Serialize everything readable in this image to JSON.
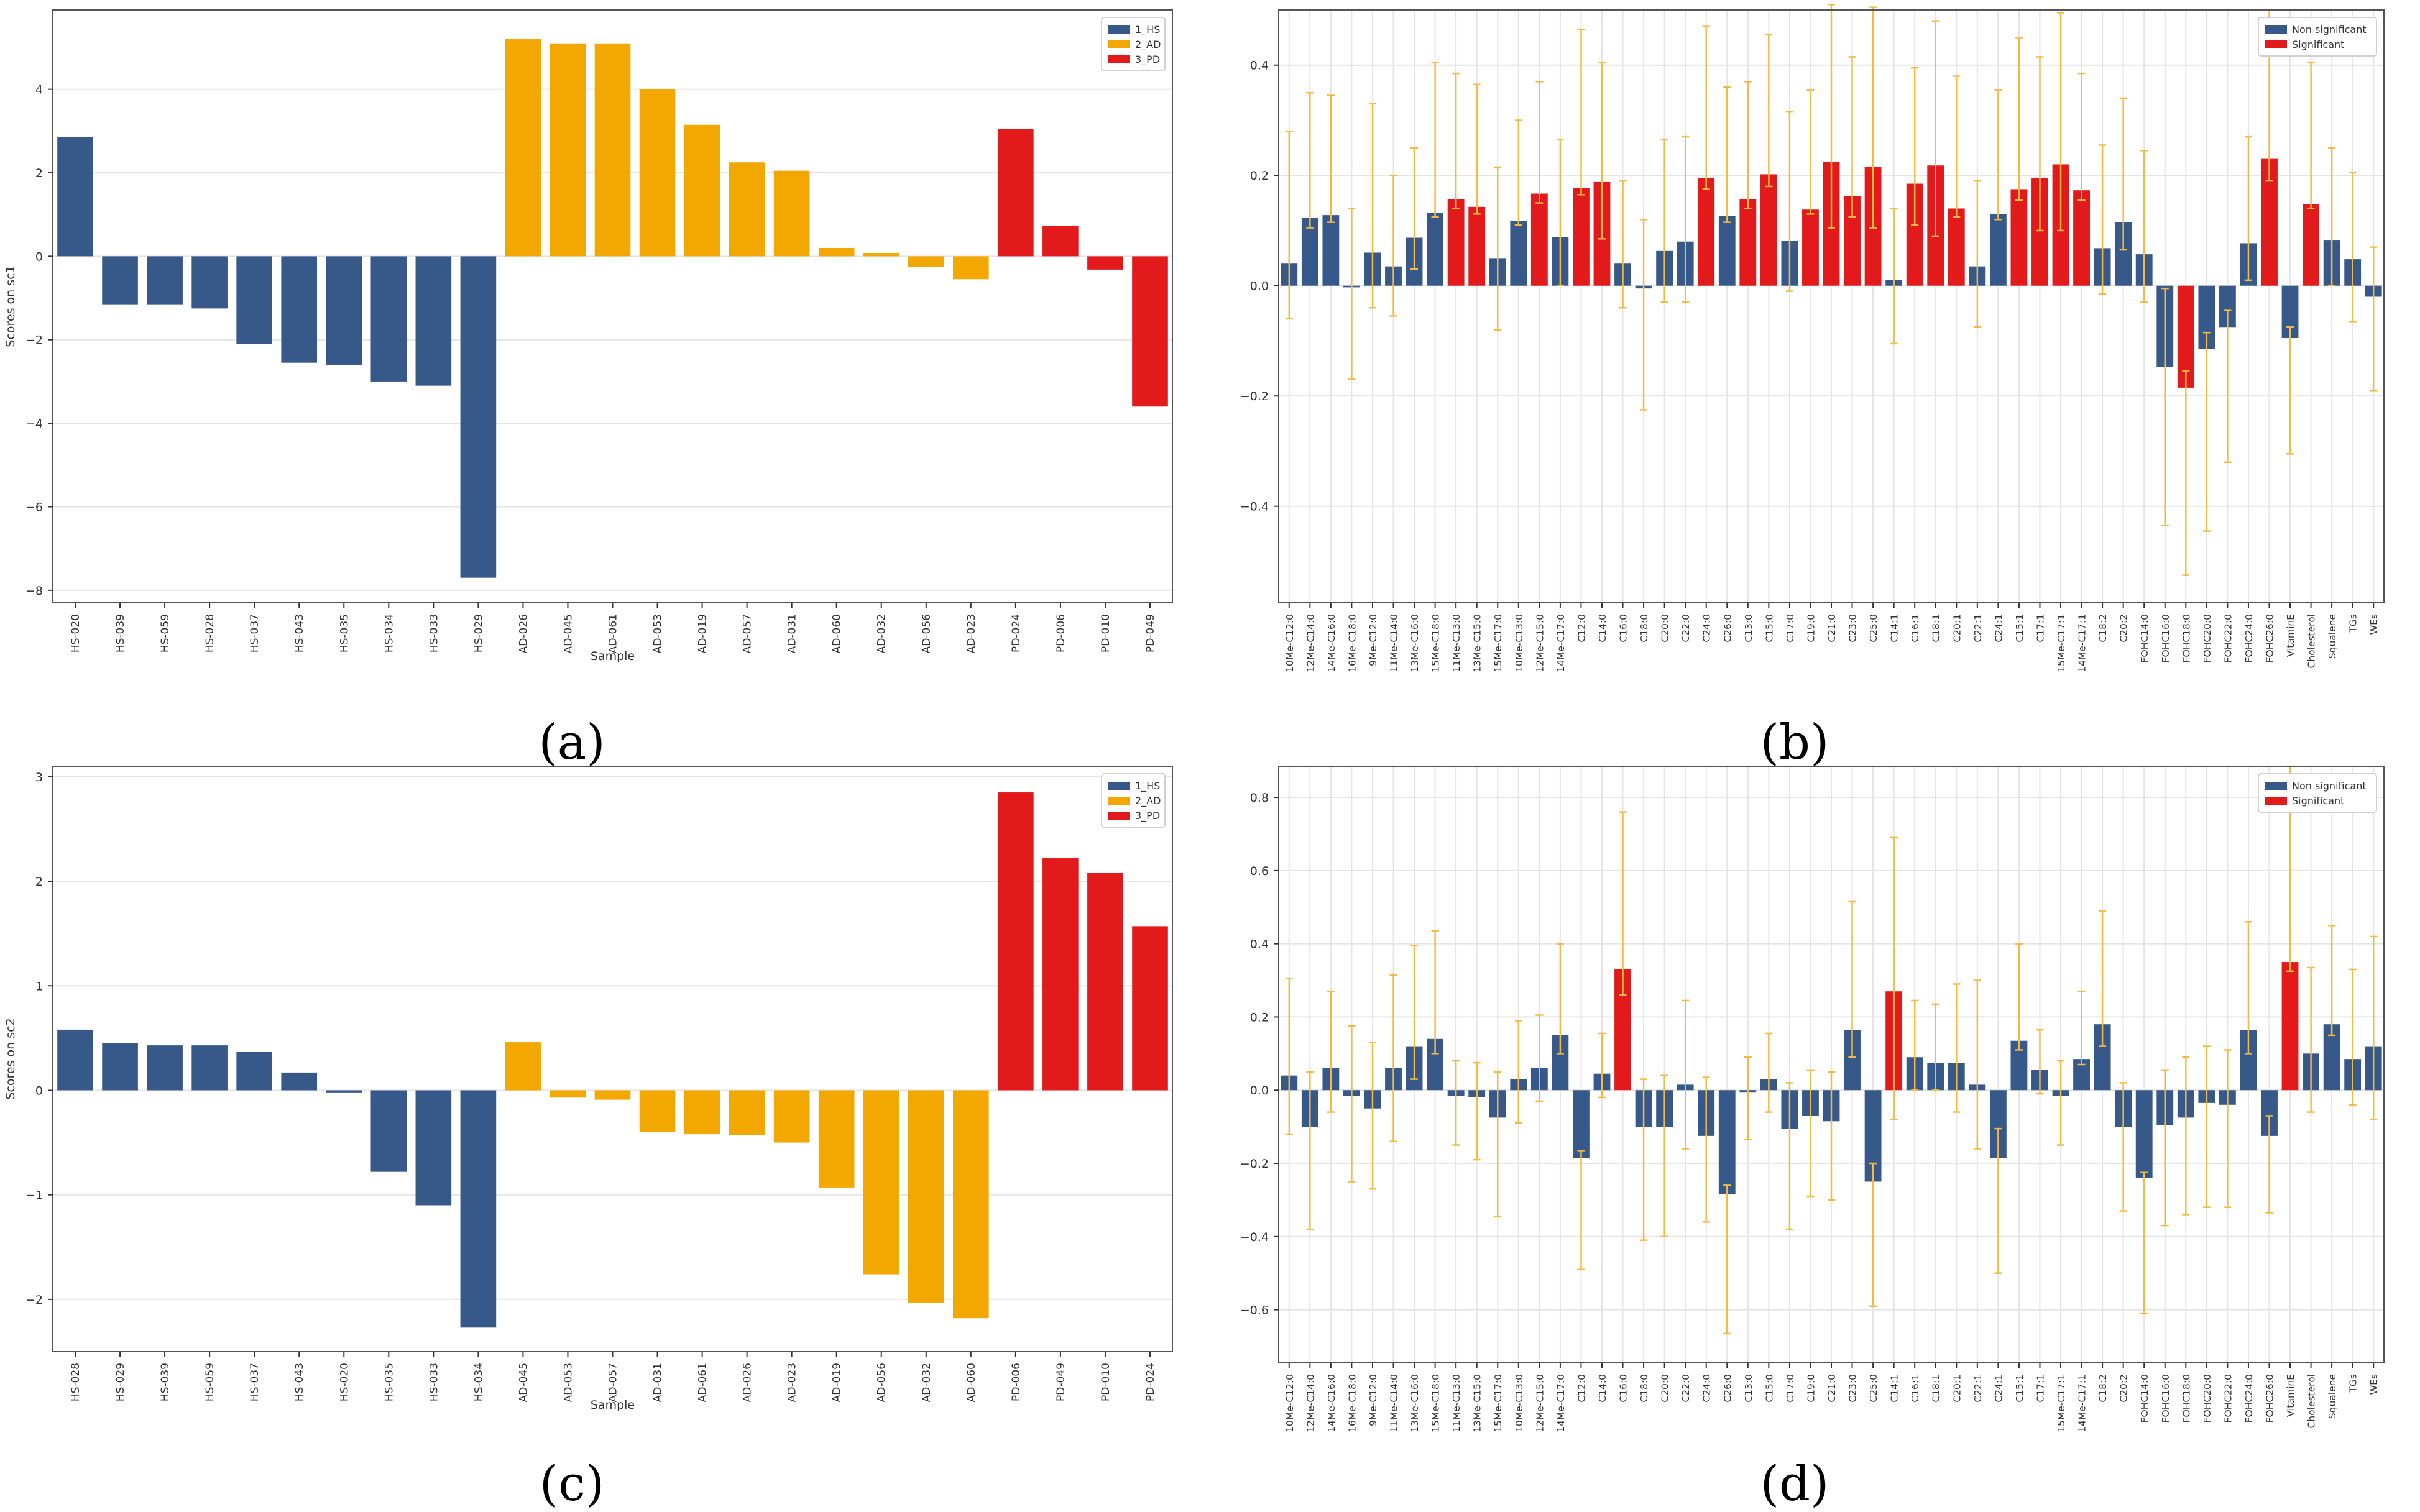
{
  "panels": [
    {
      "letter": "(a)",
      "chart_data": {
        "type": "bar",
        "xlabel": "Sample",
        "ylabel": "Scores on sc1",
        "ylim": [
          -8.3,
          5.9
        ],
        "yticks": [
          -8,
          -6,
          -4,
          -2,
          0,
          2,
          4
        ],
        "grid": true,
        "legend_position": "top-right",
        "legend": [
          "1_HS",
          "2_AD",
          "3_PD"
        ],
        "colors": {
          "1_HS": "#37598a",
          "2_AD": "#f2a800",
          "3_PD": "#e31a1c"
        },
        "categories": [
          "HS-020",
          "HS-039",
          "HS-059",
          "HS-028",
          "HS-037",
          "HS-043",
          "HS-035",
          "HS-034",
          "HS-033",
          "HS-029",
          "AD-026",
          "AD-045",
          "AD-061",
          "AD-053",
          "AD-019",
          "AD-057",
          "AD-031",
          "AD-060",
          "AD-032",
          "AD-056",
          "AD-023",
          "PD-024",
          "PD-006",
          "PD-010",
          "PD-049"
        ],
        "groups": [
          "1_HS",
          "1_HS",
          "1_HS",
          "1_HS",
          "1_HS",
          "1_HS",
          "1_HS",
          "1_HS",
          "1_HS",
          "1_HS",
          "2_AD",
          "2_AD",
          "2_AD",
          "2_AD",
          "2_AD",
          "2_AD",
          "2_AD",
          "2_AD",
          "2_AD",
          "2_AD",
          "2_AD",
          "3_PD",
          "3_PD",
          "3_PD",
          "3_PD"
        ],
        "values": [
          2.85,
          -1.15,
          -1.15,
          -1.25,
          -2.1,
          -2.55,
          -2.6,
          -3.0,
          -3.1,
          -7.7,
          5.2,
          5.1,
          5.1,
          4.0,
          3.15,
          2.25,
          2.05,
          0.2,
          0.08,
          -0.25,
          -0.55,
          3.05,
          0.72,
          -0.32,
          -3.6
        ]
      }
    },
    {
      "letter": "(b)",
      "chart_data": {
        "type": "bar",
        "xlabel": "",
        "ylabel": "",
        "ylim": [
          -0.575,
          0.5
        ],
        "yticks": [
          -0.4,
          -0.2,
          0.0,
          0.2,
          0.4
        ],
        "grid": true,
        "legend_position": "top-right",
        "legend": [
          "Non significant",
          "Significant"
        ],
        "colors": {
          "Non significant": "#37598a",
          "Significant": "#e31a1c",
          "errorbar": "#f5b942"
        },
        "categories": [
          "10Me-C12:0",
          "12Me-C14:0",
          "14Me-C16:0",
          "16Me-C18:0",
          "9Me-C12:0",
          "11Me-C14:0",
          "13Me-C16:0",
          "15Me-C18:0",
          "11Me-C13:0",
          "13Me-C15:0",
          "15Me-C17:0",
          "10Me-C13:0",
          "12Me-C15:0",
          "14Me-C17:0",
          "C12:0",
          "C14:0",
          "C16:0",
          "C18:0",
          "C20:0",
          "C22:0",
          "C24:0",
          "C26:0",
          "C13:0",
          "C15:0",
          "C17:0",
          "C19:0",
          "C21:0",
          "C23:0",
          "C25:0",
          "C14:1",
          "C16:1",
          "C18:1",
          "C20:1",
          "C22:1",
          "C24:1",
          "C15:1",
          "C17:1",
          "15Me-C17:1",
          "14Me-C17:1",
          "C18:2",
          "C20:2",
          "FOHC14:0",
          "FOHC16:0",
          "FOHC18:0",
          "FOHC20:0",
          "FOHC22:0",
          "FOHC24:0",
          "FOHC26:0",
          "VitaminE",
          "Cholesterol",
          "Squalene",
          "TGs",
          "WEs"
        ],
        "values": [
          0.04,
          0.123,
          0.128,
          -0.003,
          0.06,
          0.035,
          0.087,
          0.132,
          0.157,
          0.143,
          0.05,
          0.117,
          0.167,
          0.088,
          0.177,
          0.188,
          0.04,
          -0.005,
          0.063,
          0.08,
          0.195,
          0.127,
          0.157,
          0.202,
          0.082,
          0.138,
          0.225,
          0.163,
          0.215,
          0.01,
          0.185,
          0.218,
          0.14,
          0.035,
          0.13,
          0.175,
          0.195,
          0.22,
          0.173,
          0.068,
          0.115,
          0.057,
          -0.147,
          -0.185,
          -0.115,
          -0.075,
          0.077,
          0.23,
          -0.095,
          0.148,
          0.083,
          0.048,
          -0.02
        ],
        "error_low": [
          -0.06,
          0.105,
          0.115,
          -0.17,
          -0.04,
          -0.055,
          0.03,
          0.125,
          0.14,
          0.13,
          -0.08,
          0.11,
          0.15,
          0.0,
          0.165,
          0.085,
          -0.04,
          -0.225,
          -0.03,
          -0.03,
          0.175,
          0.115,
          0.14,
          0.18,
          -0.01,
          0.13,
          0.105,
          0.125,
          0.105,
          -0.105,
          0.11,
          0.09,
          0.125,
          -0.075,
          0.12,
          0.155,
          0.1,
          0.1,
          0.155,
          -0.015,
          0.065,
          -0.03,
          -0.435,
          -0.525,
          -0.445,
          -0.32,
          0.01,
          0.19,
          -0.305,
          0.14,
          0.0,
          -0.065,
          -0.19
        ],
        "error_high": [
          0.28,
          0.35,
          0.345,
          0.14,
          0.33,
          0.2,
          0.25,
          0.405,
          0.385,
          0.365,
          0.215,
          0.3,
          0.37,
          0.265,
          0.465,
          0.405,
          0.19,
          0.12,
          0.265,
          0.27,
          0.47,
          0.36,
          0.37,
          0.455,
          0.315,
          0.355,
          0.51,
          0.415,
          0.505,
          0.14,
          0.395,
          0.48,
          0.38,
          0.19,
          0.355,
          0.45,
          0.415,
          0.495,
          0.385,
          0.255,
          0.34,
          0.245,
          -0.005,
          -0.155,
          -0.085,
          -0.045,
          0.27,
          0.5,
          -0.075,
          0.405,
          0.25,
          0.205,
          0.07
        ],
        "significant": [
          false,
          false,
          false,
          false,
          false,
          false,
          false,
          false,
          true,
          true,
          false,
          false,
          true,
          false,
          true,
          true,
          false,
          false,
          false,
          false,
          true,
          false,
          true,
          true,
          false,
          true,
          true,
          true,
          true,
          false,
          true,
          true,
          true,
          false,
          false,
          true,
          true,
          true,
          true,
          false,
          false,
          false,
          false,
          true,
          false,
          false,
          false,
          true,
          false,
          true,
          false,
          false,
          false
        ]
      }
    },
    {
      "letter": "(c)",
      "chart_data": {
        "type": "bar",
        "xlabel": "Sample",
        "ylabel": "Scores on sc2",
        "ylim": [
          -2.5,
          3.1
        ],
        "yticks": [
          -2,
          -1,
          0,
          1,
          2,
          3
        ],
        "grid": true,
        "legend_position": "top-right",
        "legend": [
          "1_HS",
          "2_AD",
          "3_PD"
        ],
        "colors": {
          "1_HS": "#37598a",
          "2_AD": "#f2a800",
          "3_PD": "#e31a1c"
        },
        "categories": [
          "HS-028",
          "HS-029",
          "HS-039",
          "HS-059",
          "HS-037",
          "HS-043",
          "HS-020",
          "HS-035",
          "HS-033",
          "HS-034",
          "AD-045",
          "AD-053",
          "AD-057",
          "AD-031",
          "AD-061",
          "AD-026",
          "AD-023",
          "AD-019",
          "AD-056",
          "AD-032",
          "AD-060",
          "PD-006",
          "PD-049",
          "PD-010",
          "PD-024"
        ],
        "groups": [
          "1_HS",
          "1_HS",
          "1_HS",
          "1_HS",
          "1_HS",
          "1_HS",
          "1_HS",
          "1_HS",
          "1_HS",
          "1_HS",
          "2_AD",
          "2_AD",
          "2_AD",
          "2_AD",
          "2_AD",
          "2_AD",
          "2_AD",
          "2_AD",
          "2_AD",
          "2_AD",
          "2_AD",
          "3_PD",
          "3_PD",
          "3_PD",
          "3_PD"
        ],
        "values": [
          0.58,
          0.45,
          0.43,
          0.43,
          0.37,
          0.17,
          -0.02,
          -0.78,
          -1.1,
          -2.27,
          0.46,
          -0.07,
          -0.09,
          -0.4,
          -0.42,
          -0.43,
          -0.5,
          -0.93,
          -1.76,
          -2.03,
          -2.18,
          2.85,
          2.22,
          2.08,
          1.57
        ]
      }
    },
    {
      "letter": "(d)",
      "chart_data": {
        "type": "bar",
        "xlabel": "",
        "ylabel": "",
        "ylim": [
          -0.745,
          0.885
        ],
        "yticks": [
          -0.6,
          -0.4,
          -0.2,
          0.0,
          0.2,
          0.4,
          0.6,
          0.8
        ],
        "grid": true,
        "legend_position": "top-right",
        "legend": [
          "Non significant",
          "Significant"
        ],
        "colors": {
          "Non significant": "#37598a",
          "Significant": "#e31a1c",
          "errorbar": "#f5b942"
        },
        "categories": [
          "10Me-C12:0",
          "12Me-C14:0",
          "14Me-C16:0",
          "16Me-C18:0",
          "9Me-C12:0",
          "11Me-C14:0",
          "13Me-C16:0",
          "15Me-C18:0",
          "11Me-C13:0",
          "13Me-C15:0",
          "15Me-C17:0",
          "10Me-C13:0",
          "12Me-C15:0",
          "14Me-C17:0",
          "C12:0",
          "C14:0",
          "C16:0",
          "C18:0",
          "C20:0",
          "C22:0",
          "C24:0",
          "C26:0",
          "C13:0",
          "C15:0",
          "C17:0",
          "C19:0",
          "C21:0",
          "C23:0",
          "C25:0",
          "C14:1",
          "C16:1",
          "C18:1",
          "C20:1",
          "C22:1",
          "C24:1",
          "C15:1",
          "C17:1",
          "15Me-C17:1",
          "14Me-C17:1",
          "C18:2",
          "C20:2",
          "FOHC14:0",
          "FOHC16:0",
          "FOHC18:0",
          "FOHC20:0",
          "FOHC22:0",
          "FOHC24:0",
          "FOHC26:0",
          "VitaminE",
          "Cholesterol",
          "Squalene",
          "TGs",
          "WEs"
        ],
        "values": [
          0.04,
          -0.1,
          0.06,
          -0.015,
          -0.05,
          0.06,
          0.12,
          0.14,
          -0.015,
          -0.02,
          -0.075,
          0.03,
          0.06,
          0.15,
          -0.185,
          0.045,
          0.33,
          -0.1,
          -0.1,
          0.015,
          -0.125,
          -0.285,
          -0.005,
          0.03,
          -0.105,
          -0.07,
          -0.085,
          0.165,
          -0.25,
          0.27,
          0.09,
          0.075,
          0.075,
          0.015,
          -0.185,
          0.135,
          0.055,
          -0.015,
          0.085,
          0.18,
          -0.1,
          -0.24,
          -0.095,
          -0.075,
          -0.035,
          -0.04,
          0.165,
          -0.125,
          0.35,
          0.1,
          0.18,
          0.085,
          0.12
        ],
        "error_low": [
          -0.12,
          -0.38,
          -0.06,
          -0.25,
          -0.27,
          -0.14,
          0.03,
          0.1,
          -0.15,
          -0.19,
          -0.345,
          -0.09,
          -0.03,
          0.1,
          -0.49,
          -0.02,
          0.26,
          -0.41,
          -0.4,
          -0.16,
          -0.36,
          -0.665,
          -0.135,
          -0.06,
          -0.38,
          -0.29,
          -0.3,
          0.09,
          -0.59,
          -0.08,
          0.0,
          0.0,
          -0.06,
          -0.16,
          -0.5,
          0.11,
          -0.01,
          -0.15,
          0.07,
          0.12,
          -0.33,
          -0.61,
          -0.37,
          -0.34,
          -0.32,
          -0.32,
          0.1,
          -0.335,
          0.325,
          -0.06,
          0.15,
          -0.04,
          -0.08
        ],
        "error_high": [
          0.305,
          0.05,
          0.27,
          0.175,
          0.13,
          0.315,
          0.395,
          0.435,
          0.08,
          0.075,
          0.05,
          0.19,
          0.205,
          0.4,
          -0.165,
          0.155,
          0.76,
          0.03,
          0.04,
          0.245,
          0.035,
          -0.26,
          0.09,
          0.155,
          0.02,
          0.055,
          0.05,
          0.515,
          -0.2,
          0.69,
          0.245,
          0.235,
          0.29,
          0.3,
          -0.105,
          0.4,
          0.165,
          0.08,
          0.27,
          0.49,
          0.02,
          -0.225,
          0.055,
          0.09,
          0.12,
          0.11,
          0.46,
          -0.07,
          0.885,
          0.335,
          0.45,
          0.33,
          0.42
        ],
        "significant": [
          false,
          false,
          false,
          false,
          false,
          false,
          false,
          false,
          false,
          false,
          false,
          false,
          false,
          false,
          false,
          false,
          true,
          false,
          false,
          false,
          false,
          false,
          false,
          false,
          false,
          false,
          false,
          false,
          false,
          true,
          false,
          false,
          false,
          false,
          false,
          false,
          false,
          false,
          false,
          false,
          false,
          false,
          false,
          false,
          false,
          false,
          false,
          false,
          true,
          false,
          false,
          false,
          false
        ]
      }
    }
  ]
}
